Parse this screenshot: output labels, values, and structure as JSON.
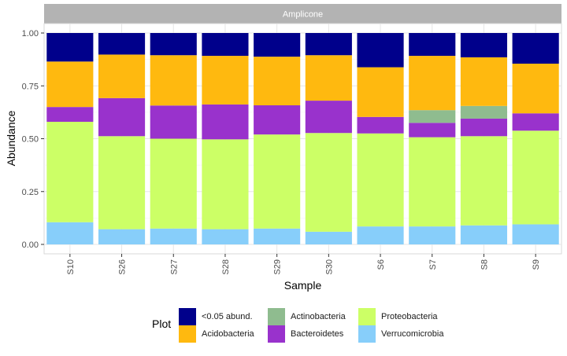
{
  "chart_data": {
    "type": "bar",
    "stacked": true,
    "facet_label": "Amplicone",
    "xlabel": "Sample",
    "ylabel": "Abundance",
    "ylim": [
      0,
      1
    ],
    "yticks": [
      "0.00",
      "0.25",
      "0.50",
      "0.75",
      "1.00"
    ],
    "categories": [
      "S10",
      "S26",
      "S27",
      "S28",
      "S29",
      "S30",
      "S6",
      "S7",
      "S8",
      "S9"
    ],
    "grid": true,
    "legend_title": "Plot",
    "legend_position": "bottom",
    "series": [
      {
        "name": "Verrucomicrobia",
        "color": "#87CEFA",
        "values": [
          0.105,
          0.072,
          0.075,
          0.072,
          0.075,
          0.06,
          0.085,
          0.085,
          0.09,
          0.095
        ]
      },
      {
        "name": "Proteobacteria",
        "color": "#CCFF66",
        "values": [
          0.475,
          0.44,
          0.425,
          0.425,
          0.445,
          0.467,
          0.44,
          0.422,
          0.422,
          0.443
        ]
      },
      {
        "name": "Bacteroidetes",
        "color": "#9932CC",
        "values": [
          0.07,
          0.18,
          0.157,
          0.165,
          0.138,
          0.153,
          0.078,
          0.068,
          0.083,
          0.082
        ]
      },
      {
        "name": "Actinobacteria",
        "color": "#8FBC8F",
        "values": [
          0.0,
          0.0,
          0.0,
          0.0,
          0.0,
          0.0,
          0.0,
          0.06,
          0.06,
          0.0
        ]
      },
      {
        "name": "Acidobacteria",
        "color": "#FFB90F",
        "values": [
          0.215,
          0.206,
          0.238,
          0.23,
          0.23,
          0.215,
          0.235,
          0.257,
          0.23,
          0.235
        ]
      },
      {
        "name": "<0.05 abund.",
        "color": "#00008B",
        "values": [
          0.135,
          0.102,
          0.105,
          0.108,
          0.112,
          0.105,
          0.162,
          0.108,
          0.115,
          0.145
        ]
      }
    ]
  },
  "legend": {
    "title": "Plot",
    "items": [
      {
        "label": "<0.05 abund.",
        "color": "#00008B"
      },
      {
        "label": "Acidobacteria",
        "color": "#FFB90F"
      },
      {
        "label": "Actinobacteria",
        "color": "#8FBC8F"
      },
      {
        "label": "Bacteroidetes",
        "color": "#9932CC"
      },
      {
        "label": "Proteobacteria",
        "color": "#CCFF66"
      },
      {
        "label": "Verrucomicrobia",
        "color": "#87CEFA"
      }
    ]
  }
}
